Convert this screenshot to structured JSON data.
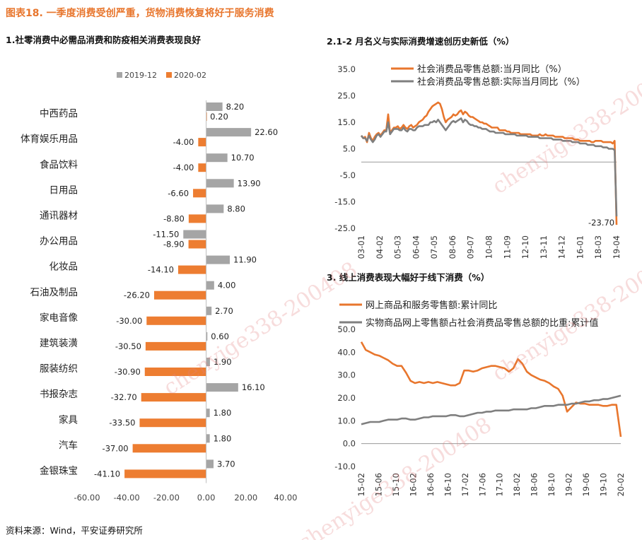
{
  "figure_title": "图表18.  一季度消费受创严重，货物消费恢复将好于服务消费",
  "source_note": "资料来源：Wind，平安证券研究所",
  "watermark_text": "chenyige338-200408",
  "colors": {
    "orange": "#ED7D31",
    "gray": "#A5A5A5",
    "gray_dark": "#7F7F7F",
    "title_orange": "#E8762D"
  },
  "panel1": {
    "title": "1.社零消费中必需品消费和防疫相关消费表现良好",
    "chart_data": {
      "type": "bar",
      "orientation": "horizontal",
      "legend_position": "top",
      "categories": [
        "中西药品",
        "体育娱乐用品",
        "食品饮料",
        "日用品",
        "通讯器材",
        "办公用品",
        "化妆品",
        "石油及制品",
        "家电音像",
        "建筑装潢",
        "服装纺织",
        "书报杂志",
        "家具",
        "汽车",
        "金银珠宝"
      ],
      "series": [
        {
          "name": "2019-12",
          "color": "#A5A5A5",
          "values": [
            8.2,
            22.6,
            10.7,
            13.9,
            8.8,
            -11.5,
            11.9,
            4.0,
            2.7,
            0.6,
            1.9,
            16.1,
            1.8,
            1.8,
            3.7
          ],
          "labels": [
            "8.20",
            "22.60",
            "10.70",
            "13.90",
            "8.80",
            "-11.50",
            "11.90",
            "4.00",
            "2.70",
            "0.60",
            "1.90",
            "16.10",
            "1.80",
            "1.80",
            "3.70"
          ]
        },
        {
          "name": "2020-02",
          "color": "#ED7D31",
          "values": [
            0.2,
            -4.0,
            -4.0,
            -6.6,
            -8.8,
            -8.9,
            -14.1,
            -26.2,
            -30.0,
            -30.5,
            -30.9,
            -32.7,
            -33.5,
            -37.0,
            -41.1
          ],
          "labels": [
            "0.20",
            "-4.00",
            "-4.00",
            "-6.60",
            "-8.80",
            "-8.90",
            "-14.10",
            "-26.20",
            "-30.00",
            "-30.50",
            "-30.90",
            "-32.70",
            "-33.50",
            "-37.00",
            "-41.10"
          ]
        }
      ],
      "xlim": [
        -60,
        40
      ],
      "x_ticks": [
        -60,
        -40,
        -20,
        0,
        20,
        40
      ],
      "x_tick_labels": [
        "-60.00",
        "-40.00",
        "-20.00",
        "0.00",
        "20.00",
        "40.00"
      ]
    }
  },
  "panel2": {
    "title": "2.1-2 月名义与实际消费增速创历史新低（%）",
    "chart_data": {
      "type": "line",
      "legend_position": "top",
      "ylim": [
        -25,
        35
      ],
      "y_ticks": [
        35,
        25,
        15,
        5,
        -5,
        -15,
        -25
      ],
      "y_tick_labels": [
        "35.0",
        "25.0",
        "15.0",
        "5.0",
        "-5.0",
        "-15.0",
        "-25.0"
      ],
      "x_tick_labels": [
        "03-01",
        "04-02",
        "05-03",
        "06-04",
        "07-05",
        "08-06",
        "09-07",
        "10-08",
        "11-09",
        "12-10",
        "13-11",
        "14-12",
        "16-01",
        "18-03",
        "19-04"
      ],
      "annotation": "-23.70",
      "series": [
        {
          "name": "社会消费品零售总额:当月同比（%）",
          "color": "#E8762D",
          "values": [
            10,
            9,
            9.5,
            7.5,
            11,
            9,
            8,
            9.5,
            10.5,
            11,
            10,
            11,
            12,
            12,
            18,
            11,
            12,
            13,
            13,
            13.5,
            12.5,
            13,
            14,
            13,
            12.5,
            13.5,
            14,
            13,
            13.5,
            14,
            15,
            15.5,
            16,
            17,
            17.5,
            19,
            20,
            21,
            21.5,
            22,
            22.5,
            22,
            20,
            17,
            15,
            16,
            16.5,
            17,
            18,
            17.5,
            18,
            19,
            19.5,
            18,
            19,
            18.5,
            17.5,
            17,
            17,
            16.5,
            16,
            15.5,
            15,
            15,
            14.5,
            14.5,
            14,
            13.5,
            13,
            13,
            13,
            13,
            12,
            12,
            12,
            12,
            11.5,
            11.5,
            11,
            11,
            11,
            11,
            11,
            10.5,
            10.5,
            10.5,
            10.5,
            10.5,
            10.5,
            10,
            10,
            10,
            10,
            10.5,
            10,
            10,
            10.5,
            10,
            10,
            10,
            10,
            9.5,
            9.5,
            9.5,
            9.5,
            9.5,
            9,
            9,
            9,
            9,
            9,
            8.5,
            8.5,
            8.5,
            8,
            8,
            8,
            8,
            8,
            8,
            7.5,
            7.5,
            8,
            8,
            8,
            8,
            7.5,
            7.5,
            7.5,
            7.5,
            7.5,
            7,
            8,
            -23.7
          ]
        },
        {
          "name": "社会消费品零售总额:实际当月同比（%）",
          "color": "#7F7F7F",
          "values": [
            10,
            9,
            9,
            8,
            10,
            8.5,
            7.5,
            8.5,
            10,
            10.5,
            9.5,
            10.5,
            11.5,
            11.5,
            15,
            10.5,
            11.5,
            12.5,
            12.5,
            12.5,
            12,
            12,
            13,
            12,
            11.5,
            12.5,
            12.5,
            12,
            12,
            13,
            13.5,
            13.5,
            13.5,
            14,
            14,
            14,
            15,
            15,
            15.5,
            15,
            16,
            15,
            14,
            13,
            12,
            13,
            14,
            15,
            15.5,
            15,
            15.5,
            16,
            16.5,
            15,
            16,
            15.5,
            14.5,
            14,
            14,
            13.5,
            13.5,
            13,
            13,
            12.5,
            12.5,
            12.5,
            12,
            11.5,
            11.5,
            11.5,
            11,
            11,
            11,
            11,
            11,
            10.5,
            10.5,
            10.5,
            10.5,
            10.5,
            10.5,
            10,
            10,
            10,
            10,
            10,
            10,
            9.5,
            9.5,
            9.5,
            9.5,
            9.5,
            9.5,
            9,
            9,
            9,
            9,
            9,
            9,
            9,
            8.5,
            8.5,
            8.5,
            8.5,
            8.5,
            8,
            8,
            8,
            8,
            8,
            7.5,
            7.5,
            7.5,
            7.5,
            7,
            7,
            7,
            7,
            6.5,
            6.5,
            6.5,
            6.5,
            6,
            6,
            6,
            6,
            5.5,
            5.5,
            5.5,
            5,
            5,
            5,
            4.5,
            -20.5
          ]
        }
      ]
    }
  },
  "panel3": {
    "title": "3.  线上消费表现大幅好于线下消费（%）",
    "chart_data": {
      "type": "line",
      "legend_position": "top",
      "ylim": [
        -10,
        50
      ],
      "y_ticks": [
        50,
        40,
        30,
        20,
        10,
        0,
        -10
      ],
      "y_tick_labels": [
        "50.0",
        "40.0",
        "30.0",
        "20.0",
        "10.0",
        "0.0",
        "-10.0"
      ],
      "x_tick_labels": [
        "15-02",
        "15-06",
        "15-10",
        "16-02",
        "16-06",
        "16-10",
        "17-02",
        "17-06",
        "17-10",
        "18-02",
        "18-06",
        "18-10",
        "19-02",
        "19-06",
        "19-10",
        "20-02"
      ],
      "series": [
        {
          "name": "网上商品和服务零售额:累计同比",
          "color": "#E8762D",
          "values": [
            44.5,
            41,
            40,
            39,
            38.5,
            37.5,
            36.5,
            35,
            34,
            34,
            31,
            27.5,
            26.5,
            27,
            26.5,
            27,
            26.5,
            27,
            26.5,
            26,
            25.5,
            25.5,
            26.5,
            32,
            32,
            31.5,
            32,
            33,
            33.5,
            34,
            34,
            33.5,
            33,
            31.5,
            33,
            37,
            35,
            31.5,
            30,
            29,
            28,
            27.5,
            26.5,
            25,
            24,
            21,
            14,
            16,
            18,
            17.5,
            17.5,
            17,
            17,
            17,
            16.5,
            16.5,
            17,
            17,
            3
          ]
        },
        {
          "name": "实物商品网上零售额占社会消费品零售总额的比重:累计值",
          "color": "#7F7F7F",
          "values": [
            8.5,
            9,
            9.5,
            9.5,
            9.5,
            10,
            10.5,
            10.5,
            10.5,
            11,
            11,
            10.5,
            10.5,
            11,
            11.5,
            11.5,
            12,
            12,
            12,
            12,
            12.5,
            12.5,
            12,
            12,
            12.5,
            13,
            13.5,
            13.5,
            14,
            14,
            14.5,
            14.5,
            14.5,
            14.5,
            15,
            15,
            15,
            15,
            15.5,
            15.5,
            16,
            16.5,
            16.5,
            16.5,
            17,
            17,
            17,
            17.5,
            17.5,
            18,
            18.5,
            18.5,
            19,
            19,
            19.5,
            19.5,
            20,
            20.5,
            21
          ]
        }
      ]
    }
  }
}
